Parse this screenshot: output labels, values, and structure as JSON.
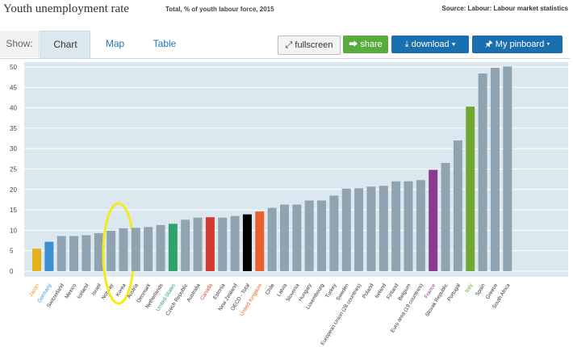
{
  "header": {
    "title": "Youth unemployment rate",
    "subtitle": "Total, % of youth labour force, 2015",
    "source": "Source: Labour: Labour market statistics"
  },
  "toolbar": {
    "show_label": "Show:",
    "tabs": [
      "Chart",
      "Map",
      "Table"
    ],
    "fullscreen_label": "fullscreen",
    "share_label": "share",
    "download_label": "download",
    "pinboard_label": "My pinboard",
    "fullscreen_icon": "expand-arrows-icon",
    "share_icon": "share-icon",
    "download_icon": "download-icon",
    "pinboard_icon": "pin-icon"
  },
  "colors": {
    "plot_bg": "#dce8ef",
    "default_bar": "#8fa3b0",
    "japan": "#e3b21b",
    "germany": "#3a8fd1",
    "united_states": "#2fa36b",
    "canada": "#d63a2f",
    "oecd_total": "#000000",
    "united_kingdom": "#e8602c",
    "france": "#8a3a8e",
    "italy": "#72a832",
    "highlight_circle": "#f3ec1a"
  },
  "chart_data": {
    "type": "bar",
    "xlabel": "",
    "ylabel": "",
    "ylim": [
      0,
      50
    ],
    "y_ticks": [
      "0",
      "5",
      "10",
      "15",
      "20",
      "25",
      "30",
      "35",
      "40",
      "45",
      "50"
    ],
    "grid": true,
    "categories": [
      "Japan",
      "Germany",
      "Switzerland",
      "Mexico",
      "Iceland",
      "Israel",
      "Norway",
      "Korea",
      "Austria",
      "Denmark",
      "Netherlands",
      "United States",
      "Czech Republic",
      "Australia",
      "Canada",
      "Estonia",
      "New Zealand",
      "OECD - Total",
      "United Kingdom",
      "Chile",
      "Latvia",
      "Slovenia",
      "Hungary",
      "Luxembourg",
      "Turkey",
      "Sweden",
      "European Union (28 countries)",
      "Poland",
      "Ireland",
      "Finland",
      "Belgium",
      "Euro area (19 countries)",
      "France",
      "Slovak Republic",
      "Portugal",
      "Italy",
      "Spain",
      "Greece",
      "South Africa"
    ],
    "values": [
      5.5,
      7.2,
      8.6,
      8.6,
      8.8,
      9.3,
      9.9,
      10.5,
      10.6,
      10.8,
      11.3,
      11.6,
      12.6,
      13.1,
      13.2,
      13.1,
      13.5,
      13.9,
      14.6,
      15.5,
      16.3,
      16.3,
      17.3,
      17.3,
      18.5,
      20.2,
      20.3,
      20.7,
      20.9,
      22.0,
      22.0,
      22.3,
      24.8,
      26.5,
      32.0,
      40.3,
      48.4,
      49.8,
      50.1
    ],
    "highlight_colors": {
      "Japan": "#e3b21b",
      "Germany": "#3a8fd1",
      "United States": "#2fa36b",
      "Canada": "#d63a2f",
      "OECD - Total": "#000000",
      "United Kingdom": "#e8602c",
      "France": "#8a3a8e",
      "Italy": "#72a832"
    },
    "label_colors": {
      "Japan": "#e3a21b",
      "Germany": "#3a8fd1",
      "United States": "#2fa36b",
      "Canada": "#d63a2f",
      "United Kingdom": "#e8602c",
      "France": "#8a3a8e",
      "Italy": "#72a832"
    },
    "annotation_circle_category": "Korea"
  }
}
